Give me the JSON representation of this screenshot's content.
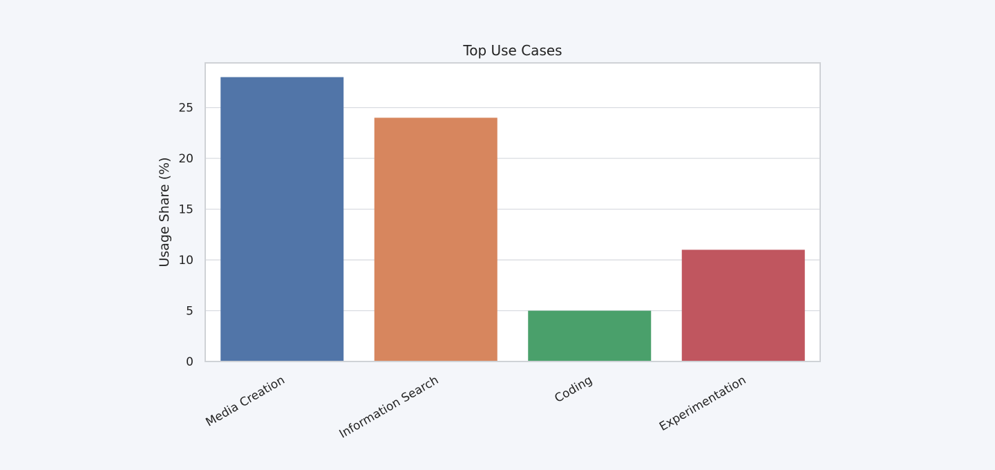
{
  "chart_data": {
    "type": "bar",
    "title": "Top Use Cases",
    "xlabel": "",
    "ylabel": "Usage Share (%)",
    "categories": [
      "Media Creation",
      "Information Search",
      "Coding",
      "Experimentation"
    ],
    "values": [
      28,
      24,
      5,
      11
    ],
    "colors": [
      "#5175a8",
      "#d7865e",
      "#4aa06b",
      "#c0565f"
    ],
    "ylim": [
      0,
      29.4
    ],
    "yticks": [
      0,
      5,
      10,
      15,
      20,
      25
    ],
    "grid": true,
    "legend": "none",
    "background": "#f4f6fa",
    "plot_background": "#ffffff",
    "grid_color": "#d9dce1",
    "frame_color": "#cfd2d6"
  }
}
